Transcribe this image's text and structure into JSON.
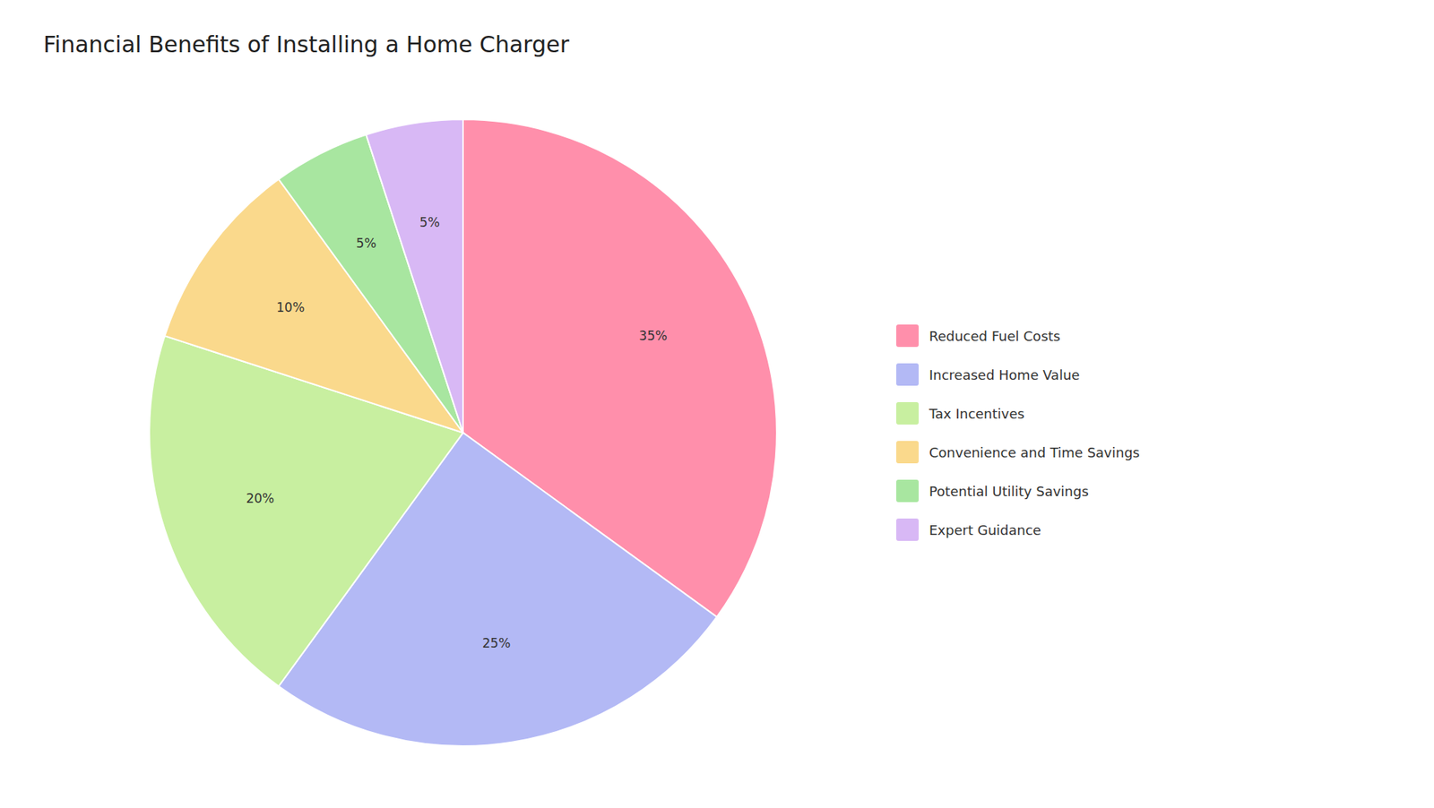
{
  "chart_data": {
    "type": "pie",
    "title": "Financial Benefits of Installing a Home Charger",
    "categories": [
      "Reduced Fuel Costs",
      "Increased Home Value",
      "Tax Incentives",
      "Convenience and Time Savings",
      "Potential Utility Savings",
      "Expert Guidance"
    ],
    "values": [
      35,
      25,
      20,
      10,
      5,
      5
    ],
    "value_labels": [
      "35%",
      "25%",
      "20%",
      "10%",
      "5%",
      "5%"
    ],
    "colors": [
      "#FF8FAB",
      "#B3B9F5",
      "#C8EFA0",
      "#FAD98C",
      "#A8E6A0",
      "#D8B8F5"
    ],
    "data_labels": true,
    "legend": "right"
  }
}
